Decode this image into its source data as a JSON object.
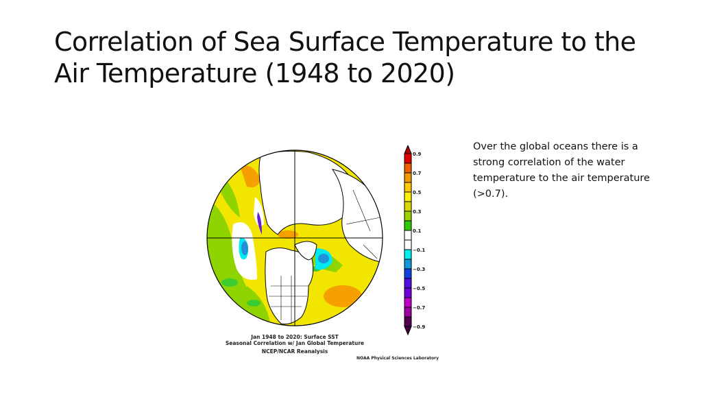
{
  "slide": {
    "title": "Correlation of Sea Surface Temperature to the Air Temperature (1948 to 2020)",
    "body": "Over the global oceans there is a strong correlation of the water temperature to the air temperature (>0.7)."
  },
  "figure": {
    "caption_line1": "Jan 1948 to 2020: Surface SST",
    "caption_line2": "Seasonal Correlation w/ Jan Global Temperature",
    "caption_line3": "NCEP/NCAR Reanalysis",
    "credit": "NOAA Physical Sciences Laboratory",
    "colorbar": {
      "labels": [
        "0.9",
        "0.7",
        "0.5",
        "0.3",
        "0.1",
        "−0.1",
        "−0.3",
        "−0.5",
        "−0.7",
        "−0.9"
      ],
      "colors": [
        "#e00000",
        "#f06000",
        "#f59a00",
        "#ffc800",
        "#fff000",
        "#d8d800",
        "#9ad200",
        "#30c800",
        "#ffffff",
        "#ffffff",
        "#00f0f0",
        "#1098d8",
        "#1040e0",
        "#5010e0",
        "#7000d8",
        "#c000c8",
        "#a000a0",
        "#500050"
      ],
      "top_arrow_color": "#b00000",
      "bottom_arrow_color": "#400040"
    },
    "map_colors": {
      "ocean_base": "#f2e600",
      "green": "#8fd400",
      "bright_green": "#3ccc30",
      "orange": "#f5a000",
      "cyan": "#00e8f0",
      "blue": "#2090d8",
      "violet": "#6020d0",
      "land": "#ffffff"
    }
  }
}
